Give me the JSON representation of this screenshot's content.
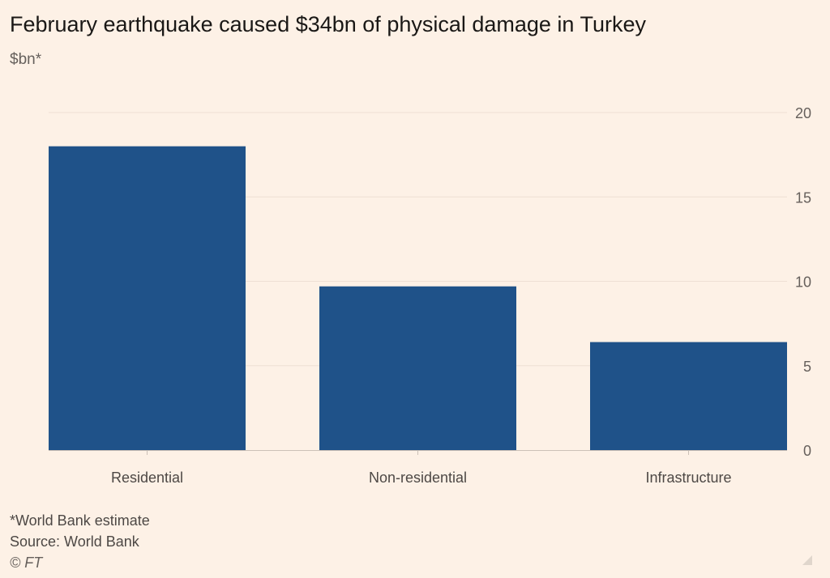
{
  "title": "February earthquake caused $34bn of physical damage in Turkey",
  "subtitle": "$bn*",
  "footer": {
    "note": "*World Bank estimate",
    "source": "Source: World Bank",
    "copyright": "© FT"
  },
  "colors": {
    "background": "#fdf1e6",
    "bar": "#1f5289",
    "grid": "#eee0d4",
    "axis": "#ccc1b7"
  },
  "chart_data": {
    "type": "bar",
    "title": "February earthquake caused $34bn of physical damage in Turkey",
    "ylabel": "$bn*",
    "xlabel": "",
    "categories": [
      "Residential",
      "Non-residential",
      "Infrastructure"
    ],
    "values": [
      18.0,
      9.7,
      6.4
    ],
    "ylim": [
      0,
      20
    ],
    "yticks": [
      0,
      5,
      10,
      15,
      20
    ],
    "y_axis_side": "right",
    "grid": true,
    "legend": "none"
  }
}
